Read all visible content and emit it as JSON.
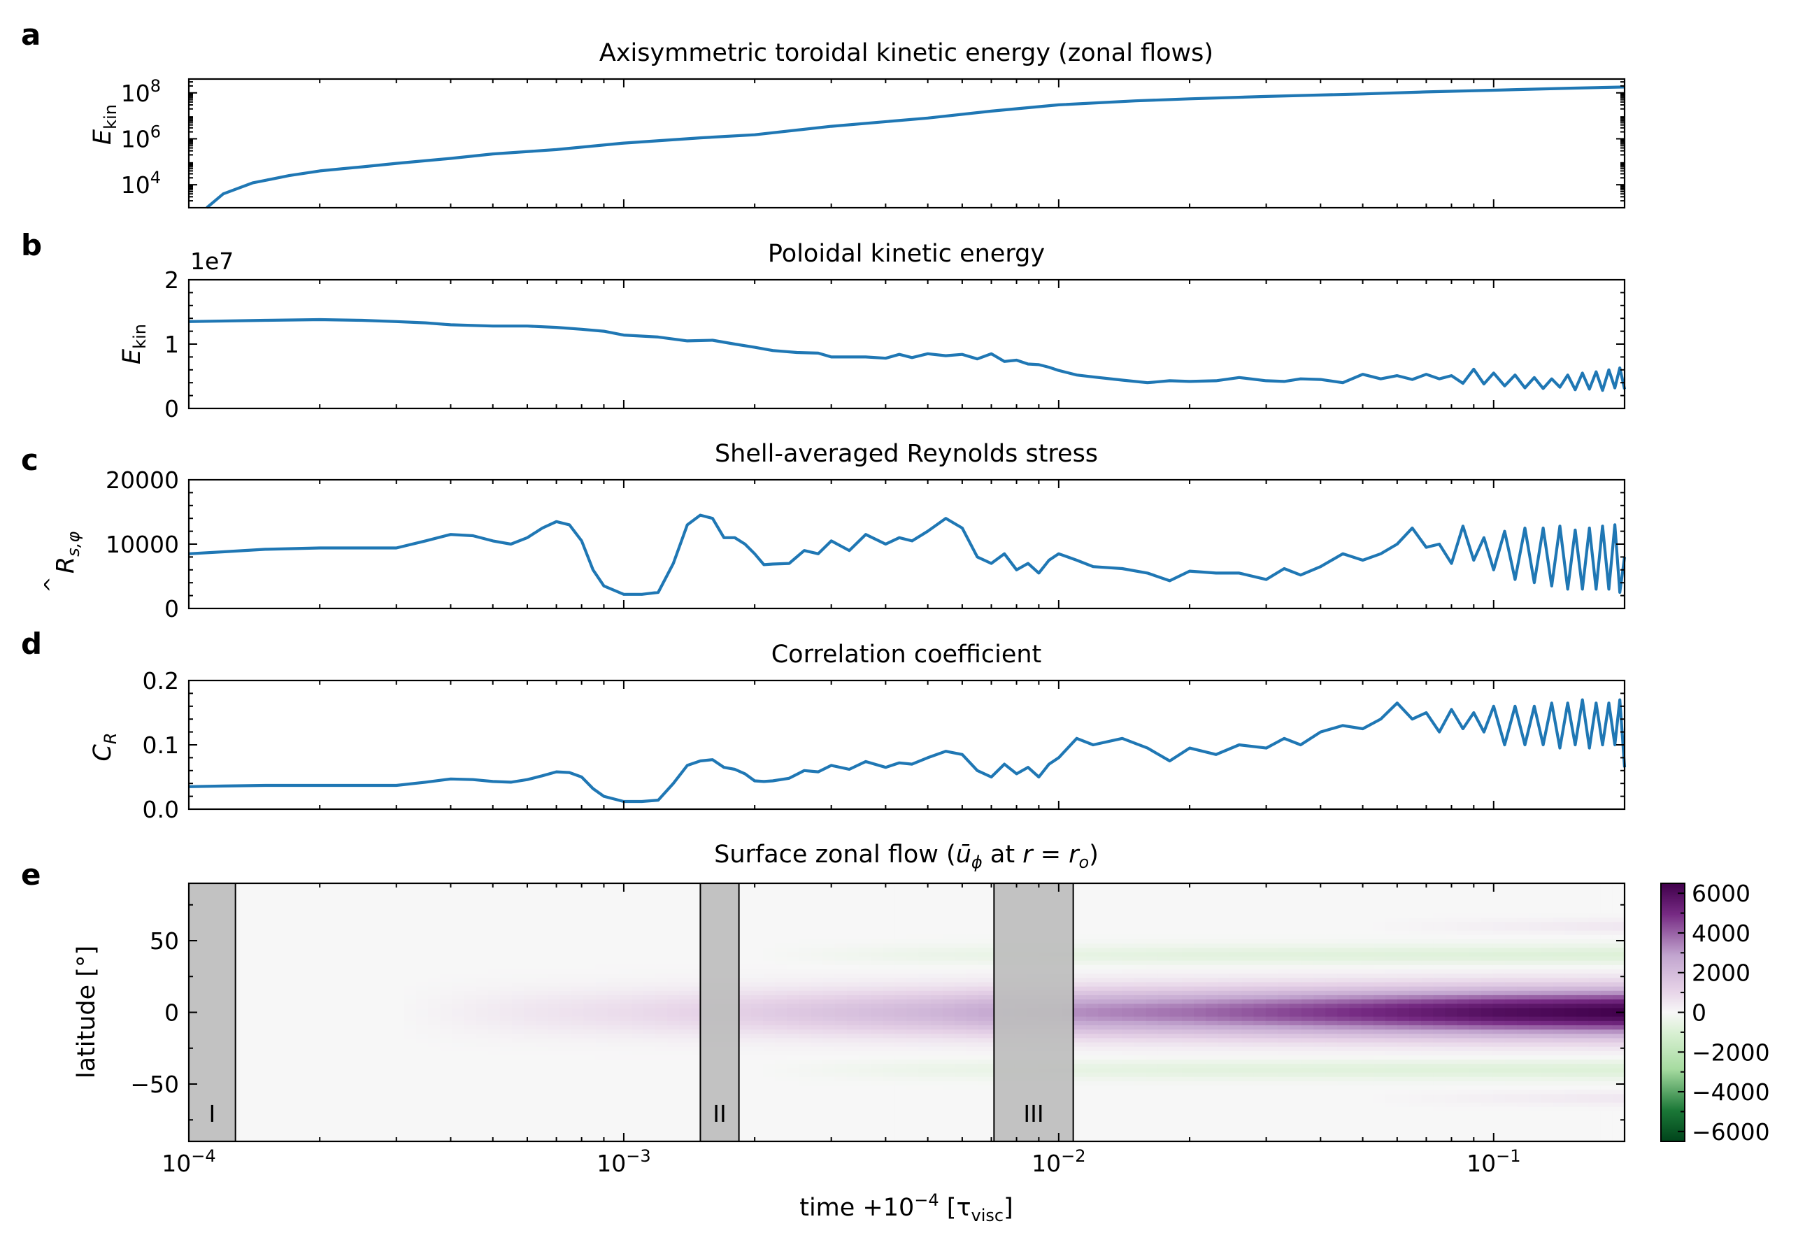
{
  "chart_data": [
    {
      "panel": "a",
      "type": "line",
      "title": "Axisymmetric toroidal kinetic energy (zonal flows)",
      "ylabel": "E",
      "ylabel_sub": "kin",
      "xscale": "log",
      "yscale": "log",
      "xlim": [
        0.0001,
        0.2
      ],
      "ylim": [
        1000,
        400000000
      ],
      "yticks": [
        {
          "label": "10",
          "sup": "4",
          "value": 10000
        },
        {
          "label": "10",
          "sup": "6",
          "value": 1000000
        },
        {
          "label": "10",
          "sup": "8",
          "value": 100000000
        }
      ],
      "series": [
        {
          "name": "toroidal",
          "color": "#1f77b4",
          "x": [
            0.00011,
            0.00012,
            0.00014,
            0.00017,
            0.0002,
            0.00025,
            0.0003,
            0.0004,
            0.0005,
            0.0007,
            0.001,
            0.0015,
            0.002,
            0.003,
            0.005,
            0.007,
            0.01,
            0.015,
            0.02,
            0.03,
            0.05,
            0.07,
            0.1,
            0.15,
            0.2
          ],
          "y": [
            1000,
            4000,
            12000,
            25000,
            40000,
            60000,
            85000,
            140000,
            220000,
            340000,
            650000,
            1100000,
            1500000,
            3500000,
            8000000,
            16000000,
            30000000,
            45000000,
            55000000,
            70000000,
            90000000,
            110000000,
            130000000,
            160000000,
            180000000
          ]
        }
      ]
    },
    {
      "panel": "b",
      "type": "line",
      "title": "Poloidal kinetic energy",
      "ylabel": "E",
      "ylabel_sub": "kin",
      "scale_label": "1e7",
      "xscale": "log",
      "xlim": [
        0.0001,
        0.2
      ],
      "ylim": [
        0,
        20000000
      ],
      "yticks": [
        {
          "label": "0",
          "value": 0
        },
        {
          "label": "1",
          "value": 10000000
        },
        {
          "label": "2",
          "value": 20000000
        }
      ],
      "series": [
        {
          "name": "poloidal",
          "color": "#1f77b4",
          "x": [
            0.0001,
            0.00015,
            0.0002,
            0.00025,
            0.0003,
            0.00035,
            0.0004,
            0.0005,
            0.0006,
            0.0007,
            0.0008,
            0.0009,
            0.001,
            0.0012,
            0.0014,
            0.0016,
            0.0018,
            0.002,
            0.0022,
            0.0025,
            0.0028,
            0.003,
            0.0033,
            0.0036,
            0.004,
            0.0043,
            0.0046,
            0.005,
            0.0055,
            0.006,
            0.0065,
            0.007,
            0.0075,
            0.008,
            0.0085,
            0.009,
            0.0095,
            0.01,
            0.011,
            0.012,
            0.014,
            0.016,
            0.018,
            0.02,
            0.023,
            0.026,
            0.03,
            0.033,
            0.036,
            0.04,
            0.045,
            0.05,
            0.055,
            0.06,
            0.065,
            0.07,
            0.075,
            0.08,
            0.085,
            0.09,
            0.095,
            0.1,
            0.106,
            0.112,
            0.118,
            0.124,
            0.13,
            0.136,
            0.142,
            0.148,
            0.154,
            0.16,
            0.166,
            0.172,
            0.178,
            0.184,
            0.19,
            0.195,
            0.2
          ],
          "y": [
            13500000,
            13700000,
            13800000,
            13700000,
            13500000,
            13300000,
            13000000,
            12800000,
            12800000,
            12600000,
            12300000,
            12000000,
            11400000,
            11100000,
            10500000,
            10600000,
            10000000,
            9500000,
            9000000,
            8700000,
            8600000,
            8000000,
            8000000,
            8000000,
            7800000,
            8400000,
            7900000,
            8500000,
            8200000,
            8400000,
            7700000,
            8500000,
            7300000,
            7500000,
            6900000,
            6800000,
            6400000,
            5900000,
            5200000,
            4900000,
            4400000,
            4000000,
            4300000,
            4200000,
            4300000,
            4800000,
            4300000,
            4200000,
            4600000,
            4500000,
            4000000,
            5300000,
            4600000,
            5100000,
            4500000,
            5300000,
            4600000,
            5100000,
            3900000,
            6100000,
            3800000,
            5500000,
            3500000,
            5200000,
            3200000,
            4800000,
            3100000,
            4600000,
            3300000,
            5200000,
            2900000,
            5500000,
            3000000,
            5700000,
            2800000,
            6000000,
            3200000,
            6300000,
            3000000
          ]
        }
      ]
    },
    {
      "panel": "c",
      "type": "line",
      "title": "Shell-averaged Reynolds stress",
      "ylabel": "R",
      "ylabel_sub": "s,φ",
      "ylabel_hat": "^",
      "xscale": "log",
      "xlim": [
        0.0001,
        0.2
      ],
      "ylim": [
        0,
        20000
      ],
      "yticks": [
        {
          "label": "0",
          "value": 0
        },
        {
          "label": "10000",
          "value": 10000
        },
        {
          "label": "20000",
          "value": 20000
        }
      ],
      "series": [
        {
          "name": "reynolds",
          "color": "#1f77b4",
          "x": [
            0.0001,
            0.00012,
            0.00015,
            0.0002,
            0.00025,
            0.0003,
            0.00035,
            0.0004,
            0.00045,
            0.0005,
            0.00055,
            0.0006,
            0.00065,
            0.0007,
            0.00075,
            0.0008,
            0.00085,
            0.0009,
            0.001,
            0.0011,
            0.0012,
            0.0013,
            0.0014,
            0.0015,
            0.0016,
            0.0017,
            0.0018,
            0.0019,
            0.002,
            0.0021,
            0.0022,
            0.0024,
            0.0026,
            0.0028,
            0.003,
            0.0033,
            0.0036,
            0.004,
            0.0043,
            0.0046,
            0.005,
            0.0055,
            0.006,
            0.0065,
            0.007,
            0.0075,
            0.008,
            0.0085,
            0.009,
            0.0095,
            0.01,
            0.011,
            0.012,
            0.014,
            0.016,
            0.018,
            0.02,
            0.023,
            0.026,
            0.03,
            0.033,
            0.036,
            0.04,
            0.045,
            0.05,
            0.055,
            0.06,
            0.065,
            0.07,
            0.075,
            0.08,
            0.085,
            0.09,
            0.095,
            0.1,
            0.106,
            0.112,
            0.118,
            0.124,
            0.13,
            0.136,
            0.142,
            0.148,
            0.154,
            0.16,
            0.166,
            0.172,
            0.178,
            0.184,
            0.19,
            0.195,
            0.2
          ],
          "y": [
            8500,
            8800,
            9200,
            9400,
            9400,
            9400,
            10500,
            11500,
            11300,
            10500,
            10000,
            11000,
            12500,
            13500,
            13000,
            10500,
            6000,
            3500,
            2200,
            2200,
            2500,
            7000,
            13000,
            14500,
            14000,
            11000,
            11000,
            10000,
            8500,
            6800,
            6900,
            7000,
            9000,
            8500,
            10500,
            9000,
            11500,
            10000,
            11000,
            10500,
            12000,
            14000,
            12500,
            8000,
            7000,
            8500,
            6000,
            7000,
            5500,
            7500,
            8500,
            7500,
            6500,
            6200,
            5500,
            4300,
            5800,
            5500,
            5500,
            4500,
            6200,
            5200,
            6500,
            8500,
            7500,
            8500,
            10000,
            12500,
            9500,
            10000,
            7000,
            12800,
            7500,
            11000,
            6000,
            12000,
            4500,
            12500,
            4000,
            12500,
            3500,
            12800,
            3000,
            12200,
            3000,
            12500,
            3000,
            12800,
            3000,
            13000,
            2500,
            8000
          ]
        }
      ]
    },
    {
      "panel": "d",
      "type": "line",
      "title": "Correlation coefficient",
      "ylabel": "C",
      "ylabel_sub": "R",
      "xscale": "log",
      "xlim": [
        0.0001,
        0.2
      ],
      "ylim": [
        0,
        0.2
      ],
      "yticks": [
        {
          "label": "0.0",
          "value": 0
        },
        {
          "label": "0.1",
          "value": 0.1
        },
        {
          "label": "0.2",
          "value": 0.2
        }
      ],
      "series": [
        {
          "name": "correlation",
          "color": "#1f77b4",
          "x": [
            0.0001,
            0.00012,
            0.00015,
            0.0002,
            0.00025,
            0.0003,
            0.00035,
            0.0004,
            0.00045,
            0.0005,
            0.00055,
            0.0006,
            0.00065,
            0.0007,
            0.00075,
            0.0008,
            0.00085,
            0.0009,
            0.001,
            0.0011,
            0.0012,
            0.0013,
            0.0014,
            0.0015,
            0.0016,
            0.0017,
            0.0018,
            0.0019,
            0.002,
            0.0021,
            0.0022,
            0.0024,
            0.0026,
            0.0028,
            0.003,
            0.0033,
            0.0036,
            0.004,
            0.0043,
            0.0046,
            0.005,
            0.0055,
            0.006,
            0.0065,
            0.007,
            0.0075,
            0.008,
            0.0085,
            0.009,
            0.0095,
            0.01,
            0.011,
            0.012,
            0.014,
            0.016,
            0.018,
            0.02,
            0.023,
            0.026,
            0.03,
            0.033,
            0.036,
            0.04,
            0.045,
            0.05,
            0.055,
            0.06,
            0.065,
            0.07,
            0.075,
            0.08,
            0.085,
            0.09,
            0.095,
            0.1,
            0.106,
            0.112,
            0.118,
            0.124,
            0.13,
            0.136,
            0.142,
            0.148,
            0.154,
            0.16,
            0.166,
            0.172,
            0.178,
            0.184,
            0.19,
            0.195,
            0.2
          ],
          "y": [
            0.035,
            0.036,
            0.037,
            0.037,
            0.037,
            0.037,
            0.042,
            0.047,
            0.046,
            0.043,
            0.042,
            0.046,
            0.052,
            0.058,
            0.057,
            0.05,
            0.032,
            0.02,
            0.012,
            0.012,
            0.014,
            0.04,
            0.068,
            0.075,
            0.077,
            0.065,
            0.062,
            0.055,
            0.044,
            0.043,
            0.044,
            0.048,
            0.06,
            0.058,
            0.068,
            0.062,
            0.074,
            0.065,
            0.072,
            0.07,
            0.08,
            0.09,
            0.085,
            0.06,
            0.05,
            0.07,
            0.055,
            0.065,
            0.05,
            0.07,
            0.08,
            0.11,
            0.1,
            0.11,
            0.095,
            0.075,
            0.095,
            0.085,
            0.1,
            0.095,
            0.11,
            0.1,
            0.12,
            0.13,
            0.125,
            0.14,
            0.165,
            0.14,
            0.15,
            0.12,
            0.155,
            0.125,
            0.15,
            0.12,
            0.16,
            0.1,
            0.16,
            0.1,
            0.16,
            0.1,
            0.165,
            0.095,
            0.165,
            0.1,
            0.17,
            0.095,
            0.165,
            0.1,
            0.165,
            0.1,
            0.17,
            0.065
          ]
        }
      ]
    },
    {
      "panel": "e",
      "type": "heatmap",
      "title_parts": [
        "Surface zonal flow (",
        "ū",
        "ϕ",
        " at ",
        "r",
        " = ",
        "r",
        "o",
        ")"
      ],
      "ylabel": "latitude [°]",
      "xlabel_parts": [
        "time +10",
        "−4",
        " [τ",
        "visc",
        "]"
      ],
      "xscale": "log",
      "xlim": [
        0.0001,
        0.2
      ],
      "ylim": [
        -90,
        90
      ],
      "yticks": [
        {
          "label": "−50",
          "value": -50
        },
        {
          "label": "0",
          "value": 0
        },
        {
          "label": "50",
          "value": 50
        }
      ],
      "xticks": [
        {
          "label": "10",
          "sup": "−4",
          "value": 0.0001
        },
        {
          "label": "10",
          "sup": "−3",
          "value": 0.001
        },
        {
          "label": "10",
          "sup": "−2",
          "value": 0.01
        },
        {
          "label": "10",
          "sup": "−1",
          "value": 0.1
        }
      ],
      "colorbar": {
        "colormap": "PRGn_r",
        "vmin": -6500,
        "vmax": 6500,
        "ticks": [
          {
            "label": "6000",
            "value": 6000
          },
          {
            "label": "4000",
            "value": 4000
          },
          {
            "label": "2000",
            "value": 2000
          },
          {
            "label": "0",
            "value": 0
          },
          {
            "label": "−2000",
            "value": -2000
          },
          {
            "label": "−4000",
            "value": -4000
          },
          {
            "label": "−6000",
            "value": -6000
          }
        ],
        "colors": {
          "max": "#40004b",
          "mid_pos": "#c2a5cf",
          "zero": "#f7f7f7",
          "mid_neg": "#a6dba0",
          "min": "#00441b"
        }
      },
      "jet_model": {
        "equatorial_amplitude_at_time": [
          [
            0.0003,
            0
          ],
          [
            0.0006,
            500
          ],
          [
            0.001,
            800
          ],
          [
            0.002,
            1300
          ],
          [
            0.005,
            2200
          ],
          [
            0.01,
            3200
          ],
          [
            0.02,
            3800
          ],
          [
            0.05,
            5000
          ],
          [
            0.1,
            6000
          ],
          [
            0.2,
            6500
          ]
        ],
        "equatorial_halfwidth_deg": 16,
        "retrograde_latitude_deg": 40,
        "retrograde_amplitude_at_time": [
          [
            0.002,
            0
          ],
          [
            0.005,
            -400
          ],
          [
            0.02,
            -700
          ],
          [
            0.2,
            -900
          ]
        ],
        "high_latitude_deg": 60,
        "high_latitude_amplitude_at_time": [
          [
            0.05,
            0
          ],
          [
            0.2,
            500
          ]
        ]
      },
      "regions": [
        {
          "label": "I",
          "x0": 0.0001,
          "x1": 0.000128
        },
        {
          "label": "II",
          "x0": 0.0015,
          "x1": 0.00184
        },
        {
          "label": "III",
          "x0": 0.0071,
          "x1": 0.0108
        }
      ]
    }
  ],
  "panel_letters": [
    "a",
    "b",
    "c",
    "d",
    "e"
  ]
}
